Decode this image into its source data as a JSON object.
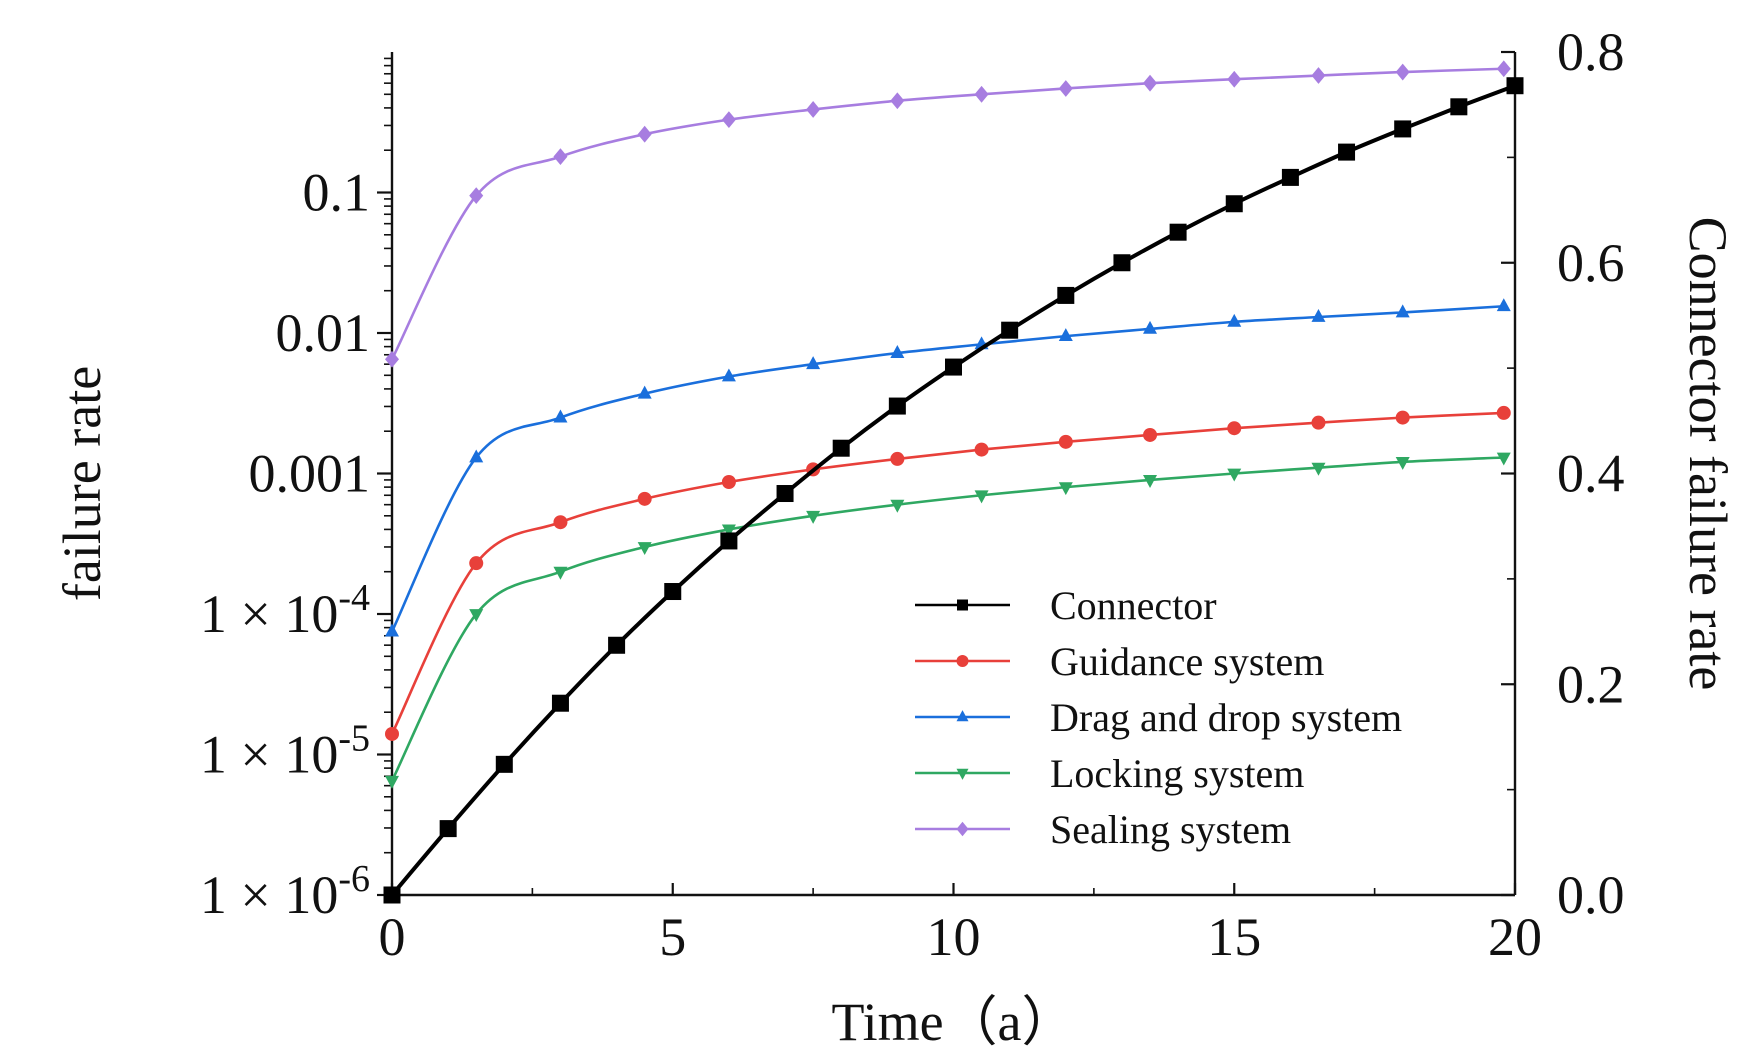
{
  "chart_data": {
    "type": "line",
    "title": "",
    "xlabel": "Time（a）",
    "ylabel_left": "failure rate",
    "ylabel_right": "Connector failure rate",
    "xlim": [
      0,
      20
    ],
    "ylim_left": [
      1e-06,
      1
    ],
    "ylim_right": [
      0,
      0.8
    ],
    "yscale_left": "log",
    "yscale_right": "linear",
    "grid": false,
    "legend_position": "bottom-right",
    "x_ticks": [
      "0",
      "5",
      "10",
      "15",
      "20"
    ],
    "y_left_ticks": [
      {
        "value": 1e-06,
        "label": "1 × 10",
        "exp": "-6"
      },
      {
        "value": 1e-05,
        "label": "1 × 10",
        "exp": "-5"
      },
      {
        "value": 0.0001,
        "label": "1 × 10",
        "exp": "-4"
      },
      {
        "value": 0.001,
        "label": "0.001",
        "exp": ""
      },
      {
        "value": 0.01,
        "label": "0.01",
        "exp": ""
      },
      {
        "value": 0.1,
        "label": "0.1",
        "exp": ""
      }
    ],
    "y_right_ticks": [
      "0.0",
      "0.2",
      "0.4",
      "0.6",
      "0.8"
    ],
    "series": [
      {
        "name": "Sealing system",
        "axis": "left",
        "color": "#a77de0",
        "marker": "diamond",
        "x": [
          0,
          1.5,
          3,
          4.5,
          6,
          7.5,
          9,
          10.5,
          12,
          13.5,
          15,
          16.5,
          18,
          19.8
        ],
        "y": [
          0.0065,
          0.095,
          0.18,
          0.26,
          0.33,
          0.39,
          0.45,
          0.5,
          0.55,
          0.6,
          0.64,
          0.68,
          0.72,
          0.76
        ]
      },
      {
        "name": "Drag and drop system",
        "axis": "left",
        "color": "#1a6fdc",
        "marker": "triangle-up",
        "x": [
          0,
          1.5,
          3,
          4.5,
          6,
          7.5,
          9,
          10.5,
          12,
          13.5,
          15,
          16.5,
          18,
          19.8
        ],
        "y": [
          7.5e-05,
          0.0013,
          0.0025,
          0.0037,
          0.0049,
          0.006,
          0.0072,
          0.0083,
          0.0095,
          0.0107,
          0.012,
          0.013,
          0.014,
          0.0155
        ]
      },
      {
        "name": "Guidance system",
        "axis": "left",
        "color": "#e8403a",
        "marker": "circle",
        "x": [
          0,
          1.5,
          3,
          4.5,
          6,
          7.5,
          9,
          10.5,
          12,
          13.5,
          15,
          16.5,
          18,
          19.8
        ],
        "y": [
          1.4e-05,
          0.00023,
          0.00045,
          0.00066,
          0.00087,
          0.00107,
          0.00127,
          0.00148,
          0.00168,
          0.00188,
          0.0021,
          0.0023,
          0.0025,
          0.0027
        ]
      },
      {
        "name": "Locking system",
        "axis": "left",
        "color": "#2fa862",
        "marker": "triangle-down",
        "x": [
          0,
          1.5,
          3,
          4.5,
          6,
          7.5,
          9,
          10.5,
          12,
          13.5,
          15,
          16.5,
          18,
          19.8
        ],
        "y": [
          6.5e-06,
          0.0001,
          0.0002,
          0.0003,
          0.0004,
          0.0005,
          0.0006,
          0.0007,
          0.0008,
          0.0009,
          0.001,
          0.0011,
          0.00121,
          0.0013
        ]
      },
      {
        "name": "Connector",
        "axis": "right",
        "color": "#000000",
        "marker": "square",
        "x": [
          0,
          1,
          2,
          3,
          4,
          5,
          6,
          7,
          8,
          9,
          10,
          11,
          12,
          13,
          14,
          15,
          16,
          17,
          18,
          19,
          20
        ],
        "y": [
          0.0,
          0.063,
          0.124,
          0.182,
          0.237,
          0.288,
          0.336,
          0.381,
          0.424,
          0.464,
          0.501,
          0.536,
          0.569,
          0.6,
          0.629,
          0.656,
          0.681,
          0.705,
          0.727,
          0.748,
          0.768
        ]
      }
    ],
    "legend_order": [
      "Connector",
      "Guidance system",
      "Drag and drop system",
      "Locking system",
      "Sealing system"
    ]
  }
}
